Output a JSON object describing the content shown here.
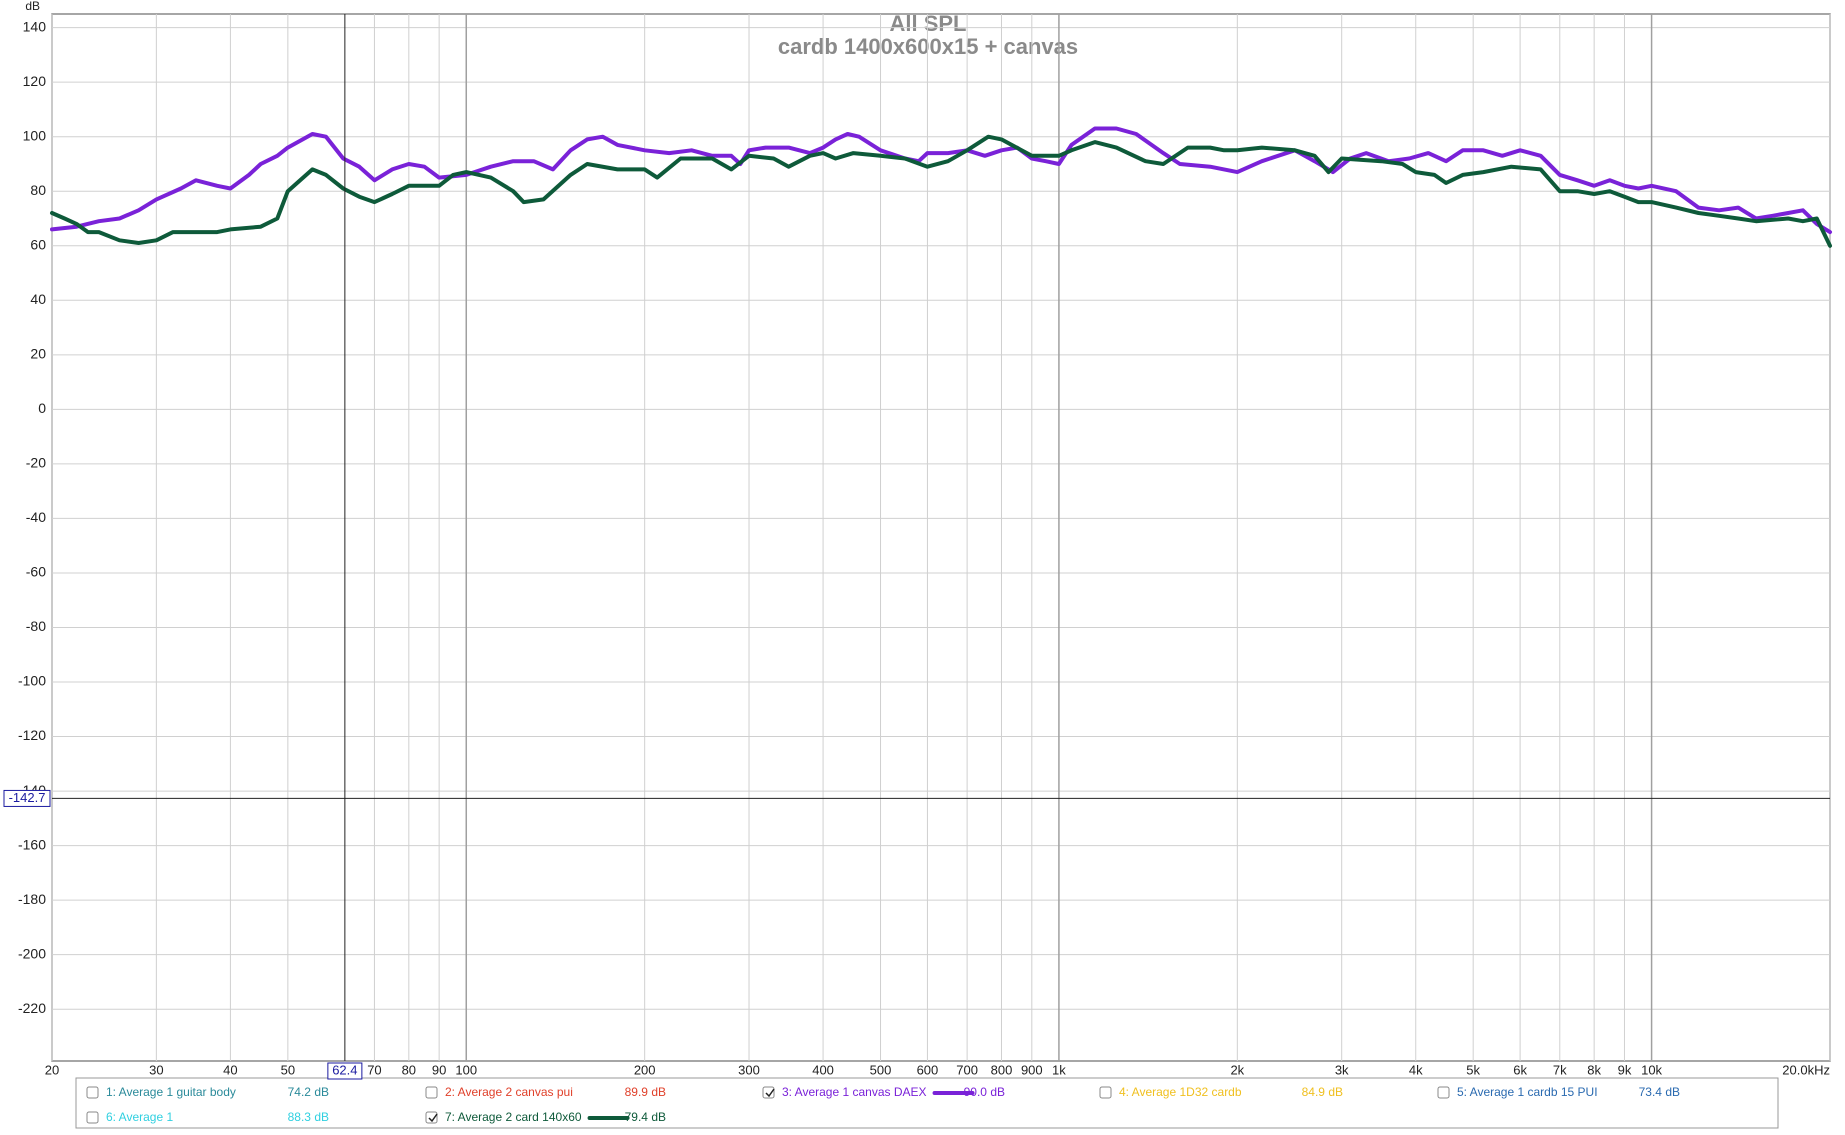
{
  "chart_data": {
    "type": "line",
    "title": "All SPL",
    "subtitle": "cardb 1400x600x15 + canvas",
    "y_label": "dB",
    "log_x": true,
    "grid": true,
    "xlim": [
      20,
      20000
    ],
    "ylim": [
      -239,
      145
    ],
    "xticks": [
      20,
      30,
      40,
      50,
      70,
      80,
      90,
      100,
      200,
      300,
      400,
      500,
      600,
      700,
      800,
      900,
      {
        "value": 1000,
        "label": "1k"
      },
      {
        "value": 2000,
        "label": "2k"
      },
      {
        "value": 3000,
        "label": "3k"
      },
      {
        "value": 4000,
        "label": "4k"
      },
      {
        "value": 5000,
        "label": "5k"
      },
      {
        "value": 6000,
        "label": "6k"
      },
      {
        "value": 7000,
        "label": "7k"
      },
      {
        "value": 8000,
        "label": "8k"
      },
      {
        "value": 9000,
        "label": "9k"
      },
      {
        "value": 10000,
        "label": "10k"
      },
      {
        "value": 20000,
        "label": "20.0kHz"
      }
    ],
    "yticks": [
      140,
      120,
      100,
      80,
      60,
      40,
      20,
      0,
      -20,
      -40,
      -60,
      -80,
      -100,
      -120,
      -140,
      -160,
      -180,
      -200,
      -220
    ],
    "cursor": {
      "x": 62.4,
      "y": -142.7
    },
    "series": [
      {
        "name": "1: Average 1 guitar body",
        "level": "74.2 dB",
        "color": "#2a8a9a",
        "checked": false
      },
      {
        "name": "2: Average 2 canvas pui",
        "level": "89.9 dB",
        "color": "#e0402a",
        "checked": false
      },
      {
        "name": "3: Average 1 canvas DAEX",
        "level": "90.0 dB",
        "color": "#7a22d8",
        "checked": true,
        "x": [
          20,
          22,
          24,
          26,
          28,
          30,
          33,
          35,
          38,
          40,
          43,
          45,
          48,
          50,
          55,
          58,
          62,
          66,
          70,
          75,
          80,
          85,
          90,
          100,
          110,
          120,
          130,
          140,
          150,
          160,
          170,
          180,
          200,
          220,
          240,
          260,
          280,
          290,
          300,
          320,
          350,
          380,
          400,
          420,
          440,
          460,
          500,
          550,
          580,
          600,
          650,
          700,
          750,
          800,
          850,
          900,
          950,
          1000,
          1050,
          1150,
          1250,
          1350,
          1500,
          1600,
          1800,
          2000,
          2200,
          2500,
          2700,
          2900,
          3100,
          3300,
          3600,
          3900,
          4200,
          4500,
          4800,
          5200,
          5600,
          6000,
          6500,
          7000,
          7500,
          8000,
          8500,
          9000,
          9500,
          10000,
          11000,
          12000,
          13000,
          14000,
          15000,
          16000,
          17000,
          18000,
          19000,
          20000
        ],
        "values": [
          66,
          67,
          69,
          70,
          73,
          77,
          81,
          84,
          82,
          81,
          86,
          90,
          93,
          96,
          101,
          100,
          92,
          89,
          84,
          88,
          90,
          89,
          85,
          86,
          89,
          91,
          91,
          88,
          95,
          99,
          100,
          97,
          95,
          94,
          95,
          93,
          93,
          90,
          95,
          96,
          96,
          94,
          96,
          99,
          101,
          100,
          95,
          92,
          91,
          94,
          94,
          95,
          93,
          95,
          96,
          92,
          91,
          90,
          97,
          103,
          103,
          101,
          94,
          90,
          89,
          87,
          91,
          95,
          91,
          87,
          92,
          94,
          91,
          92,
          94,
          91,
          95,
          95,
          93,
          95,
          93,
          86,
          84,
          82,
          84,
          82,
          81,
          82,
          80,
          74,
          73,
          74,
          70,
          71,
          72,
          73,
          68,
          65
        ]
      },
      {
        "name": "4: Average 1D32 cardb",
        "level": "84.9 dB",
        "color": "#f0c020",
        "checked": false
      },
      {
        "name": "5: Average 1 cardb 15 PUI",
        "level": "73.4 dB",
        "color": "#2a6ab0",
        "checked": false
      },
      {
        "name": "6: Average 1",
        "level": "88.3 dB",
        "color": "#30d0e0",
        "checked": false
      },
      {
        "name": "7: Average 2 card 140x60",
        "level": "79.4 dB",
        "color": "#0e5a3a",
        "checked": true,
        "x": [
          20,
          21,
          22,
          23,
          24,
          26,
          28,
          30,
          32,
          35,
          38,
          40,
          45,
          48,
          50,
          55,
          58,
          62,
          66,
          70,
          75,
          80,
          90,
          95,
          100,
          110,
          120,
          125,
          135,
          150,
          160,
          180,
          200,
          210,
          230,
          260,
          280,
          300,
          330,
          350,
          380,
          400,
          420,
          450,
          500,
          550,
          600,
          650,
          700,
          760,
          800,
          900,
          1000,
          1050,
          1150,
          1250,
          1400,
          1500,
          1650,
          1800,
          1900,
          2000,
          2200,
          2500,
          2700,
          2850,
          3000,
          3500,
          3800,
          4000,
          4300,
          4500,
          4800,
          5200,
          5800,
          6500,
          7000,
          7500,
          8000,
          8500,
          9000,
          9500,
          10000,
          11000,
          12000,
          13000,
          14000,
          15000,
          17000,
          18000,
          19000,
          20000
        ],
        "values": [
          72,
          70,
          68,
          65,
          65,
          62,
          61,
          62,
          65,
          65,
          65,
          66,
          67,
          70,
          80,
          88,
          86,
          81,
          78,
          76,
          79,
          82,
          82,
          86,
          87,
          85,
          80,
          76,
          77,
          86,
          90,
          88,
          88,
          85,
          92,
          92,
          88,
          93,
          92,
          89,
          93,
          94,
          92,
          94,
          93,
          92,
          89,
          91,
          95,
          100,
          99,
          93,
          93,
          95,
          98,
          96,
          91,
          90,
          96,
          96,
          95,
          95,
          96,
          95,
          93,
          87,
          92,
          91,
          90,
          87,
          86,
          83,
          86,
          87,
          89,
          88,
          80,
          80,
          79,
          80,
          78,
          76,
          76,
          74,
          72,
          71,
          70,
          69,
          70,
          69,
          70,
          60
        ]
      }
    ]
  }
}
